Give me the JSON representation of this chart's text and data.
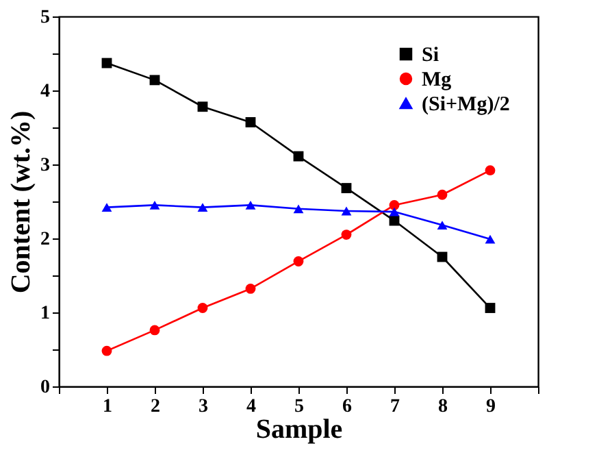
{
  "chart_data": {
    "type": "line",
    "xlabel": "Sample",
    "ylabel": "Content (wt.%)",
    "x": [
      1,
      2,
      3,
      4,
      5,
      6,
      7,
      8,
      9
    ],
    "series": [
      {
        "name": "Si",
        "color": "#000000",
        "marker": "square",
        "values": [
          4.37,
          4.14,
          3.78,
          3.57,
          3.11,
          2.68,
          2.24,
          1.75,
          1.06
        ]
      },
      {
        "name": "Mg",
        "color": "#ff0000",
        "marker": "circle",
        "values": [
          0.48,
          0.76,
          1.06,
          1.32,
          1.69,
          2.05,
          2.45,
          2.59,
          2.92
        ]
      },
      {
        "name": "(Si+Mg)/2",
        "color": "#0000ff",
        "marker": "triangle",
        "values": [
          2.42,
          2.45,
          2.42,
          2.45,
          2.4,
          2.37,
          2.36,
          2.18,
          1.99
        ]
      }
    ],
    "xlim": [
      0,
      10
    ],
    "xticks": [
      {
        "value": 0,
        "label": null
      },
      1,
      2,
      3,
      4,
      5,
      6,
      7,
      8,
      9,
      {
        "value": 10,
        "label": null
      }
    ],
    "ylim": [
      0,
      5
    ],
    "yticks": [
      0,
      {
        "value": 0.5,
        "label": null
      },
      1,
      {
        "value": 1.5,
        "label": null
      },
      2,
      {
        "value": 2.5,
        "label": null
      },
      3,
      {
        "value": 3.5,
        "label": null
      },
      4,
      {
        "value": 4.5,
        "label": null
      },
      5
    ],
    "grid": false,
    "legend": "top right",
    "line_style": "solid"
  }
}
